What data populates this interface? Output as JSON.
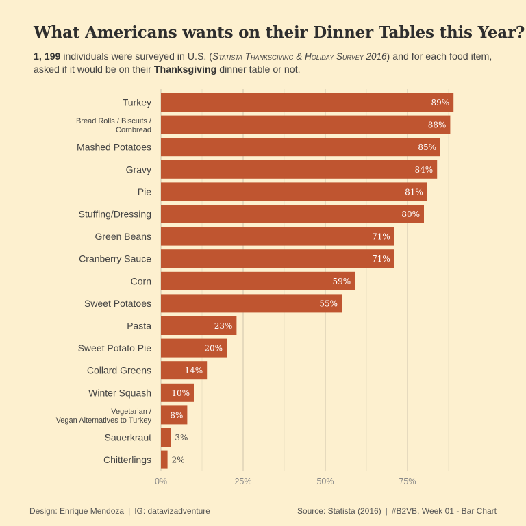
{
  "header": {
    "title": "What Americans wants on their Dinner Tables this Year?",
    "subtitle_bold_count": "1, 199",
    "subtitle_part1": " individuals were surveyed in U.S. (",
    "subtitle_source_italic": "Statista Thanksgiving & Holiday Survey 2016",
    "subtitle_part2": ") and for each food item, asked if it would be on  their ",
    "subtitle_bold_word": "Thanksgiving",
    "subtitle_part3": " dinner table or not."
  },
  "footer": {
    "design": "Design: Enrique Mendoza",
    "separator": "|",
    "ig": "IG: datavizadventure",
    "source": "Source: Statista (2016)",
    "tag": "#B2VB, Week 01 - Bar Chart"
  },
  "colors": {
    "background": "#fdf0cf",
    "bar": "#bf5530",
    "grid": "#c9c0a8",
    "label_inside": "#ffffff",
    "label_outside": "#444444",
    "category_text": "#444444",
    "tick_text": "#888888"
  },
  "chart_data": {
    "type": "bar",
    "orientation": "horizontal",
    "categories": [
      "Turkey",
      "Bread Rolls / Biscuits / Cornbread",
      "Mashed Potatoes",
      "Gravy",
      "Pie",
      "Stuffing/Dressing",
      "Green Beans",
      "Cranberry Sauce",
      "Corn",
      "Sweet Potatoes",
      "Pasta",
      "Sweet Potato Pie",
      "Collard Greens",
      "Winter Squash",
      "Vegetarian / Vegan Alternatives to Turkey",
      "Sauerkraut",
      "Chitterlings"
    ],
    "category_lines": [
      [
        "Turkey"
      ],
      [
        "Bread Rolls / Biscuits /",
        "Cornbread"
      ],
      [
        "Mashed Potatoes"
      ],
      [
        "Gravy"
      ],
      [
        "Pie"
      ],
      [
        "Stuffing/Dressing"
      ],
      [
        "Green Beans"
      ],
      [
        "Cranberry Sauce"
      ],
      [
        "Corn"
      ],
      [
        "Sweet Potatoes"
      ],
      [
        "Pasta"
      ],
      [
        "Sweet Potato Pie"
      ],
      [
        "Collard Greens"
      ],
      [
        "Winter Squash"
      ],
      [
        "Vegetarian /",
        "Vegan Alternatives to Turkey"
      ],
      [
        "Sauerkraut"
      ],
      [
        "Chitterlings"
      ]
    ],
    "values": [
      89,
      88,
      85,
      84,
      81,
      80,
      71,
      71,
      59,
      55,
      23,
      20,
      14,
      10,
      8,
      3,
      2
    ],
    "data_labels": [
      "89%",
      "88%",
      "85%",
      "84%",
      "81%",
      "80%",
      "71%",
      "71%",
      "59%",
      "55%",
      "23%",
      "20%",
      "14%",
      "10%",
      "8%",
      "3%",
      "2%"
    ],
    "x_ticks": [
      0,
      25,
      50,
      75
    ],
    "x_tick_labels": [
      "0%",
      "25%",
      "50%",
      "75%"
    ],
    "x_minor_grid": [
      12.5,
      37.5,
      62.5,
      87.5
    ],
    "xlim": [
      0,
      100
    ],
    "grid": true,
    "xlabel": "",
    "ylabel": ""
  }
}
